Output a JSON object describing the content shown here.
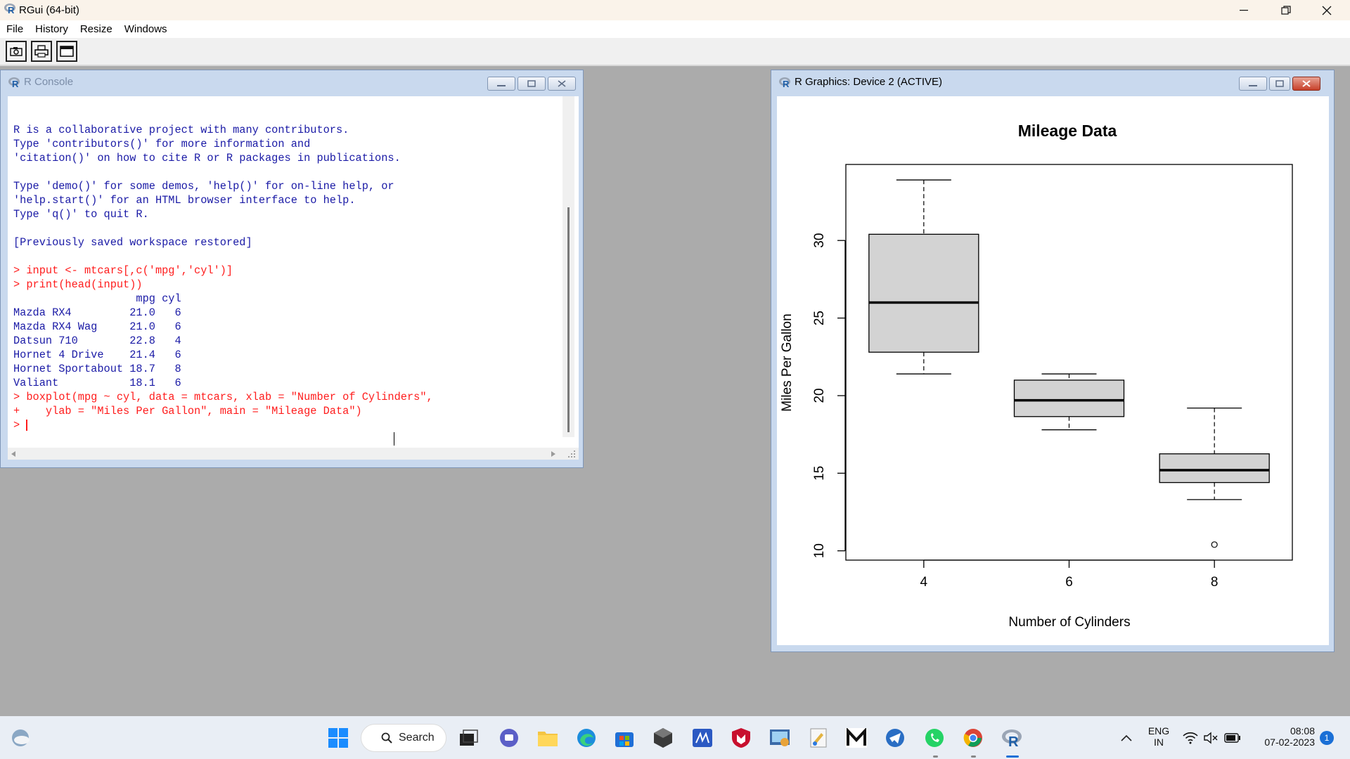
{
  "app": {
    "title": "RGui (64-bit)"
  },
  "menu": [
    "File",
    "History",
    "Resize",
    "Windows"
  ],
  "console": {
    "title": "R Console",
    "lines": [
      {
        "t": "out",
        "text": "R is a collaborative project with many contributors."
      },
      {
        "t": "out",
        "text": "Type 'contributors()' for more information and"
      },
      {
        "t": "out",
        "text": "'citation()' on how to cite R or R packages in publications."
      },
      {
        "t": "out",
        "text": ""
      },
      {
        "t": "out",
        "text": "Type 'demo()' for some demos, 'help()' for on-line help, or"
      },
      {
        "t": "out",
        "text": "'help.start()' for an HTML browser interface to help."
      },
      {
        "t": "out",
        "text": "Type 'q()' to quit R."
      },
      {
        "t": "out",
        "text": ""
      },
      {
        "t": "out",
        "text": "[Previously saved workspace restored]"
      },
      {
        "t": "out",
        "text": ""
      },
      {
        "t": "in",
        "text": "> input <- mtcars[,c('mpg','cyl')]"
      },
      {
        "t": "in",
        "text": "> print(head(input))"
      },
      {
        "t": "out",
        "text": "                   mpg cyl"
      },
      {
        "t": "out",
        "text": "Mazda RX4         21.0   6"
      },
      {
        "t": "out",
        "text": "Mazda RX4 Wag     21.0   6"
      },
      {
        "t": "out",
        "text": "Datsun 710        22.8   4"
      },
      {
        "t": "out",
        "text": "Hornet 4 Drive    21.4   6"
      },
      {
        "t": "out",
        "text": "Hornet Sportabout 18.7   8"
      },
      {
        "t": "out",
        "text": "Valiant           18.1   6"
      },
      {
        "t": "in",
        "text": "> boxplot(mpg ~ cyl, data = mtcars, xlab = \"Number of Cylinders\","
      },
      {
        "t": "in",
        "text": "+    ylab = \"Miles Per Gallon\", main = \"Mileage Data\")"
      },
      {
        "t": "in",
        "text": "> "
      }
    ]
  },
  "graphics": {
    "title": "R Graphics: Device 2 (ACTIVE)"
  },
  "chart_data": {
    "type": "boxplot",
    "title": "Mileage Data",
    "xlabel": "Number of Cylinders",
    "ylabel": "Miles Per Gallon",
    "categories": [
      "4",
      "6",
      "8"
    ],
    "boxes": [
      {
        "category": "4",
        "lower_whisker": 21.4,
        "q1": 22.8,
        "median": 26.0,
        "q3": 30.4,
        "upper_whisker": 33.9,
        "outliers": []
      },
      {
        "category": "6",
        "lower_whisker": 17.8,
        "q1": 18.65,
        "median": 19.7,
        "q3": 21.0,
        "upper_whisker": 21.4,
        "outliers": []
      },
      {
        "category": "8",
        "lower_whisker": 13.3,
        "q1": 14.4,
        "median": 15.2,
        "q3": 16.25,
        "upper_whisker": 19.2,
        "outliers": [
          10.4
        ]
      }
    ],
    "yticks": [
      10,
      15,
      20,
      25,
      30
    ],
    "ylim": [
      9.4,
      34.9
    ],
    "box_color": "#d3d3d3"
  },
  "taskbar": {
    "search_label": "Search",
    "lang_top": "ENG",
    "lang_bottom": "IN",
    "time": "08:08",
    "date": "07-02-2023",
    "notification_count": "1"
  }
}
